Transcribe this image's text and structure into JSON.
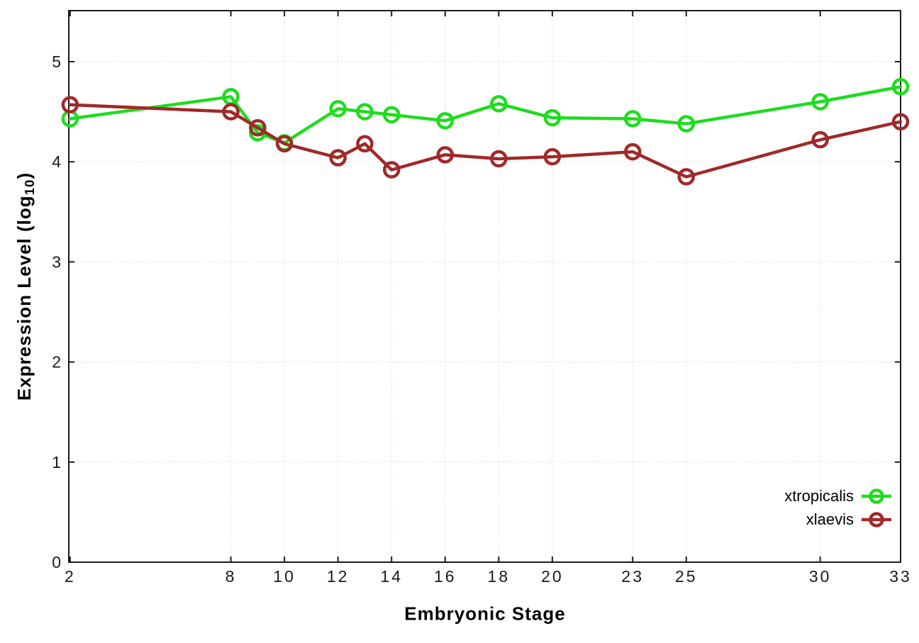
{
  "chart_data": {
    "type": "line",
    "title": "",
    "xlabel": "Embryonic Stage",
    "ylabel_main": "Expression Level (log",
    "ylabel_sub": "10",
    "ylabel_end": ")",
    "x": [
      2,
      8,
      9,
      10,
      12,
      13,
      14,
      16,
      18,
      20,
      23,
      25,
      30,
      33
    ],
    "series": [
      {
        "name": "xtropicalis",
        "color": "#1edc1e",
        "values": [
          4.43,
          4.65,
          4.29,
          4.19,
          4.53,
          4.5,
          4.47,
          4.41,
          4.58,
          4.44,
          4.43,
          4.38,
          4.6,
          4.75
        ]
      },
      {
        "name": "xlaevis",
        "color": "#a02929",
        "values": [
          4.57,
          4.5,
          4.34,
          4.18,
          4.04,
          4.18,
          3.92,
          4.07,
          4.03,
          4.05,
          4.1,
          3.85,
          4.22,
          4.4
        ]
      }
    ],
    "x_ticks": [
      2,
      8,
      10,
      12,
      14,
      16,
      18,
      20,
      23,
      25,
      30,
      33
    ],
    "y_ticks": [
      0,
      1,
      2,
      3,
      4,
      5
    ],
    "xlim": [
      1.95,
      33
    ],
    "ylim": [
      0,
      5.51
    ],
    "grid": true,
    "legend_position": "bottom-right",
    "marker": "open-circle",
    "colors": {
      "grid": "#c9c9c9",
      "border": "#1c1c1c",
      "tick_text": "#1a1a1a",
      "background": "#ffffff"
    }
  }
}
